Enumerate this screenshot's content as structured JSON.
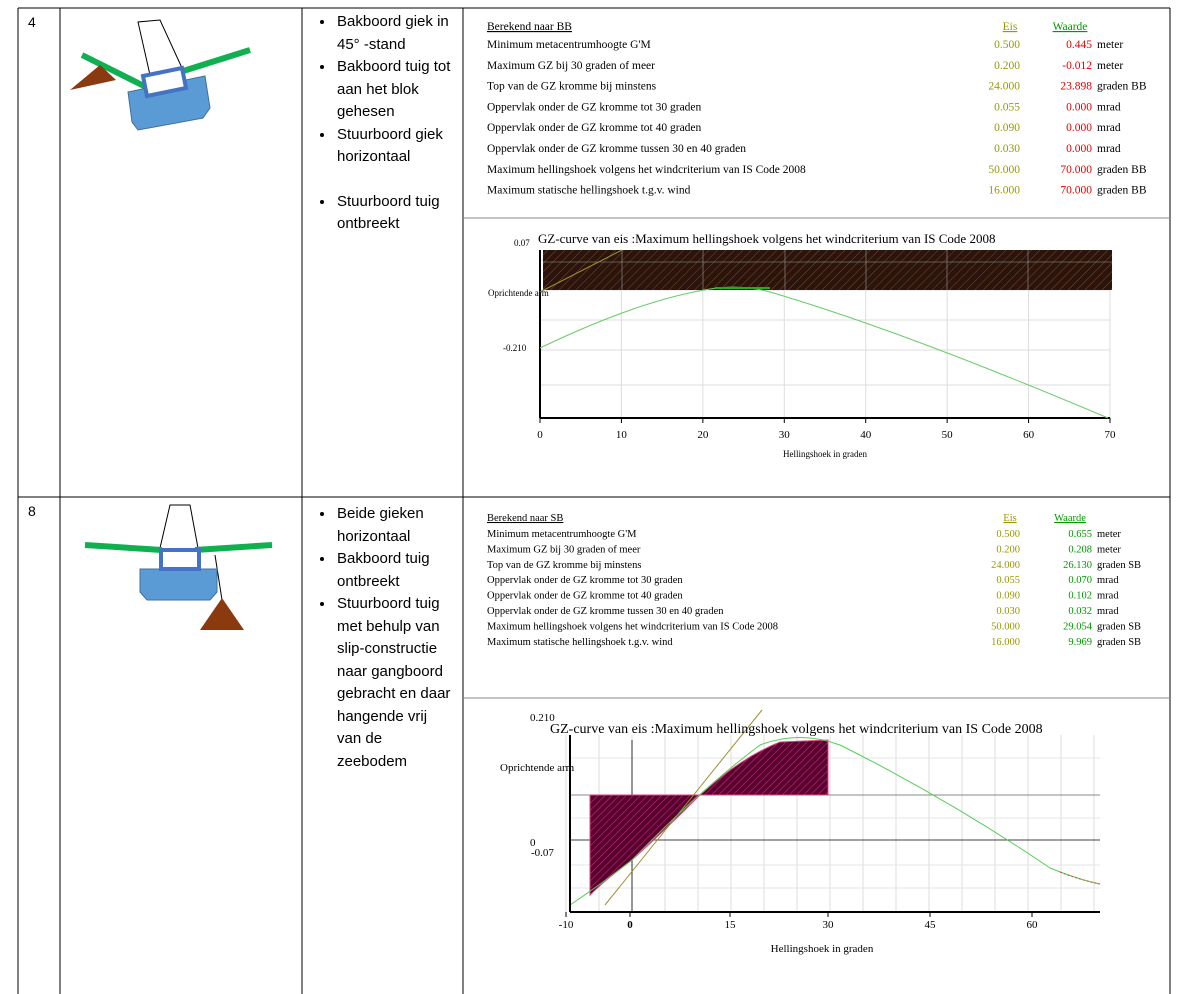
{
  "rows": [
    {
      "number": "4",
      "notes": [
        "Bakboord giek in 45° -stand",
        "Bakboord tuig tot aan het blok gehesen",
        "Stuurboord giek horizontaal",
        "Stuurboord tuig ontbreekt"
      ],
      "results": {
        "heading": "Berekend naar BB",
        "col_eis": "Eis",
        "col_waarde": "Waarde",
        "waarde_color": "#e00000",
        "rows": [
          [
            "Minimum metacentrumhoogte G'M",
            "0.500",
            "0.445",
            "meter"
          ],
          [
            "Maximum GZ bij 30 graden of meer",
            "0.200",
            "-0.012",
            "meter"
          ],
          [
            "Top van de GZ kromme bij minstens",
            "24.000",
            "23.898",
            "graden BB"
          ],
          [
            "Oppervlak onder de GZ kromme tot 30 graden",
            "0.055",
            "0.000",
            "mrad"
          ],
          [
            "Oppervlak onder de GZ kromme tot 40 graden",
            "0.090",
            "0.000",
            "mrad"
          ],
          [
            "Oppervlak onder de GZ kromme tussen 30 en 40 graden",
            "0.030",
            "0.000",
            "mrad"
          ],
          [
            "Maximum hellingshoek volgens het windcriterium van IS Code 2008",
            "50.000",
            "70.000",
            "graden BB"
          ],
          [
            "Maximum statische hellingshoek t.g.v. wind",
            "16.000",
            "70.000",
            "graden BB"
          ]
        ]
      },
      "chart": {
        "title": "GZ-curve van eis :Maximum hellingshoek volgens het windcriterium van IS Code 2008",
        "y_label": "Oprichtende arm",
        "x_label": "Hellingshoek in graden",
        "x_ticks": [
          "0",
          "10",
          "20",
          "30",
          "40",
          "50",
          "60",
          "70"
        ],
        "y_ticks": [
          "0.07",
          "-0.210"
        ]
      }
    },
    {
      "number": "8",
      "notes": [
        "Beide gieken horizontaal",
        "Bakboord tuig ontbreekt",
        "Stuurboord tuig met behulp van slip-constructie naar gangboord gebracht en daar hangende vrij van de zeebodem"
      ],
      "results": {
        "heading": "Berekend naar SB",
        "col_eis": "Eis",
        "col_waarde": "Waarde",
        "waarde_color": "#009900",
        "rows": [
          [
            "Minimum metacentrumhoogte G'M",
            "0.500",
            "0.655",
            "meter"
          ],
          [
            "Maximum GZ bij 30 graden of meer",
            "0.200",
            "0.208",
            "meter"
          ],
          [
            "Top van de GZ kromme bij minstens",
            "24.000",
            "26.130",
            "graden SB"
          ],
          [
            "Oppervlak onder de GZ kromme tot 30 graden",
            "0.055",
            "0.070",
            "mrad"
          ],
          [
            "Oppervlak onder de GZ kromme tot 40 graden",
            "0.090",
            "0.102",
            "mrad"
          ],
          [
            "Oppervlak onder de GZ kromme tussen 30 en 40 graden",
            "0.030",
            "0.032",
            "mrad"
          ],
          [
            "Maximum hellingshoek volgens het windcriterium van IS Code 2008",
            "50.000",
            "29.054",
            "graden SB"
          ],
          [
            "Maximum statische hellingshoek t.g.v. wind",
            "16.000",
            "9.969",
            "graden SB"
          ]
        ]
      },
      "chart": {
        "title": "GZ-curve van eis :Maximum hellingshoek volgens het windcriterium van IS Code 2008",
        "y_label": "Oprichtende arm",
        "x_label": "Hellingshoek in graden",
        "x_ticks": [
          "-10",
          "0",
          "15",
          "30",
          "45",
          "60"
        ],
        "y_ticks": [
          "0.210",
          "0",
          "-0.07"
        ]
      }
    }
  ]
}
